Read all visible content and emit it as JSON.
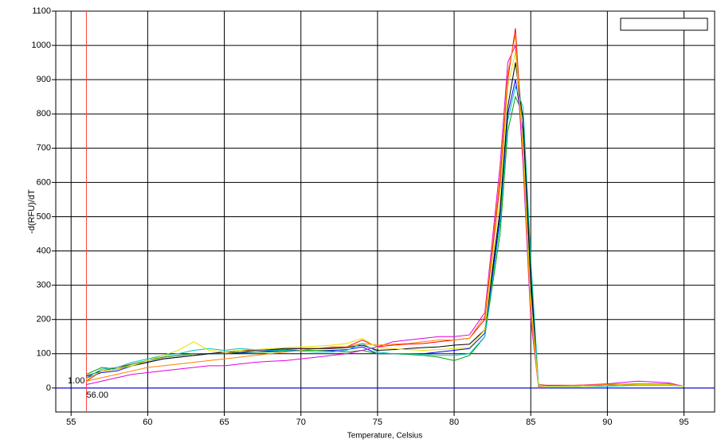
{
  "chart_data": {
    "type": "line",
    "y_label": "-d(RFU)/dT",
    "x_label": "Temperature, Celsius",
    "annotations": [
      "1.00",
      "56.00"
    ],
    "cursor": {
      "x": 56,
      "y": 0
    },
    "xlim": [
      54,
      97
    ],
    "ylim": [
      -70,
      1100
    ],
    "xticks": [
      55,
      60,
      65,
      70,
      75,
      80,
      85,
      90,
      95
    ],
    "yticks": [
      0,
      100,
      200,
      300,
      400,
      500,
      600,
      700,
      800,
      900,
      1000,
      1100
    ],
    "grid": true,
    "x": [
      56,
      57,
      58,
      59,
      60,
      61,
      62,
      63,
      64,
      65,
      66,
      67,
      68,
      69,
      70,
      71,
      72,
      73,
      74,
      75,
      76,
      77,
      78,
      79,
      80,
      81,
      82,
      83,
      83.5,
      84,
      84.5,
      85,
      85.5,
      86,
      88,
      90,
      92,
      94,
      95
    ],
    "series": [
      {
        "color": "#ff0000",
        "values": [
          20,
          50,
          60,
          70,
          80,
          90,
          95,
          100,
          100,
          105,
          105,
          110,
          110,
          112,
          115,
          115,
          118,
          120,
          140,
          120,
          125,
          128,
          130,
          135,
          140,
          145,
          200,
          600,
          900,
          1050,
          700,
          250,
          10,
          8,
          8,
          10,
          12,
          12,
          5
        ]
      },
      {
        "color": "#0000ff",
        "values": [
          30,
          45,
          50,
          65,
          75,
          85,
          90,
          95,
          100,
          100,
          102,
          105,
          108,
          110,
          110,
          110,
          110,
          112,
          120,
          100,
          100,
          100,
          100,
          105,
          110,
          115,
          160,
          500,
          800,
          900,
          750,
          300,
          5,
          5,
          5,
          8,
          10,
          10,
          5
        ]
      },
      {
        "color": "#00a000",
        "values": [
          40,
          60,
          55,
          70,
          80,
          90,
          95,
          100,
          100,
          100,
          105,
          105,
          105,
          108,
          110,
          110,
          108,
          105,
          110,
          100,
          100,
          98,
          95,
          90,
          80,
          95,
          150,
          450,
          750,
          850,
          800,
          350,
          10,
          5,
          5,
          8,
          10,
          10,
          5
        ]
      },
      {
        "color": "#e000e0",
        "values": [
          10,
          20,
          30,
          40,
          45,
          50,
          55,
          60,
          65,
          65,
          70,
          75,
          78,
          80,
          85,
          90,
          95,
          100,
          110,
          120,
          135,
          140,
          145,
          150,
          150,
          155,
          220,
          650,
          950,
          1000,
          650,
          200,
          5,
          5,
          8,
          12,
          20,
          15,
          5
        ]
      },
      {
        "color": "#ff8000",
        "values": [
          20,
          30,
          40,
          50,
          60,
          65,
          70,
          75,
          80,
          85,
          90,
          95,
          100,
          105,
          110,
          115,
          120,
          120,
          130,
          125,
          128,
          130,
          135,
          140,
          140,
          145,
          210,
          620,
          920,
          1030,
          680,
          220,
          5,
          5,
          8,
          10,
          12,
          12,
          5
        ]
      },
      {
        "color": "#000000",
        "values": [
          35,
          50,
          55,
          65,
          75,
          85,
          90,
          95,
          100,
          105,
          110,
          110,
          112,
          115,
          115,
          115,
          115,
          118,
          125,
          110,
          112,
          115,
          118,
          120,
          125,
          128,
          170,
          520,
          820,
          950,
          780,
          320,
          8,
          5,
          5,
          8,
          10,
          10,
          5
        ]
      },
      {
        "color": "#00c0c0",
        "values": [
          30,
          55,
          60,
          75,
          85,
          95,
          100,
          110,
          115,
          110,
          115,
          112,
          110,
          110,
          108,
          105,
          105,
          110,
          130,
          105,
          100,
          100,
          98,
          95,
          95,
          100,
          150,
          480,
          780,
          880,
          820,
          380,
          10,
          5,
          5,
          5,
          8,
          8,
          5
        ]
      },
      {
        "color": "#e0e000",
        "values": [
          25,
          50,
          55,
          65,
          80,
          95,
          110,
          135,
          110,
          105,
          110,
          112,
          115,
          118,
          120,
          122,
          125,
          130,
          145,
          118,
          115,
          112,
          110,
          112,
          115,
          118,
          170,
          560,
          880,
          980,
          720,
          260,
          8,
          5,
          5,
          8,
          10,
          10,
          5
        ]
      }
    ]
  }
}
